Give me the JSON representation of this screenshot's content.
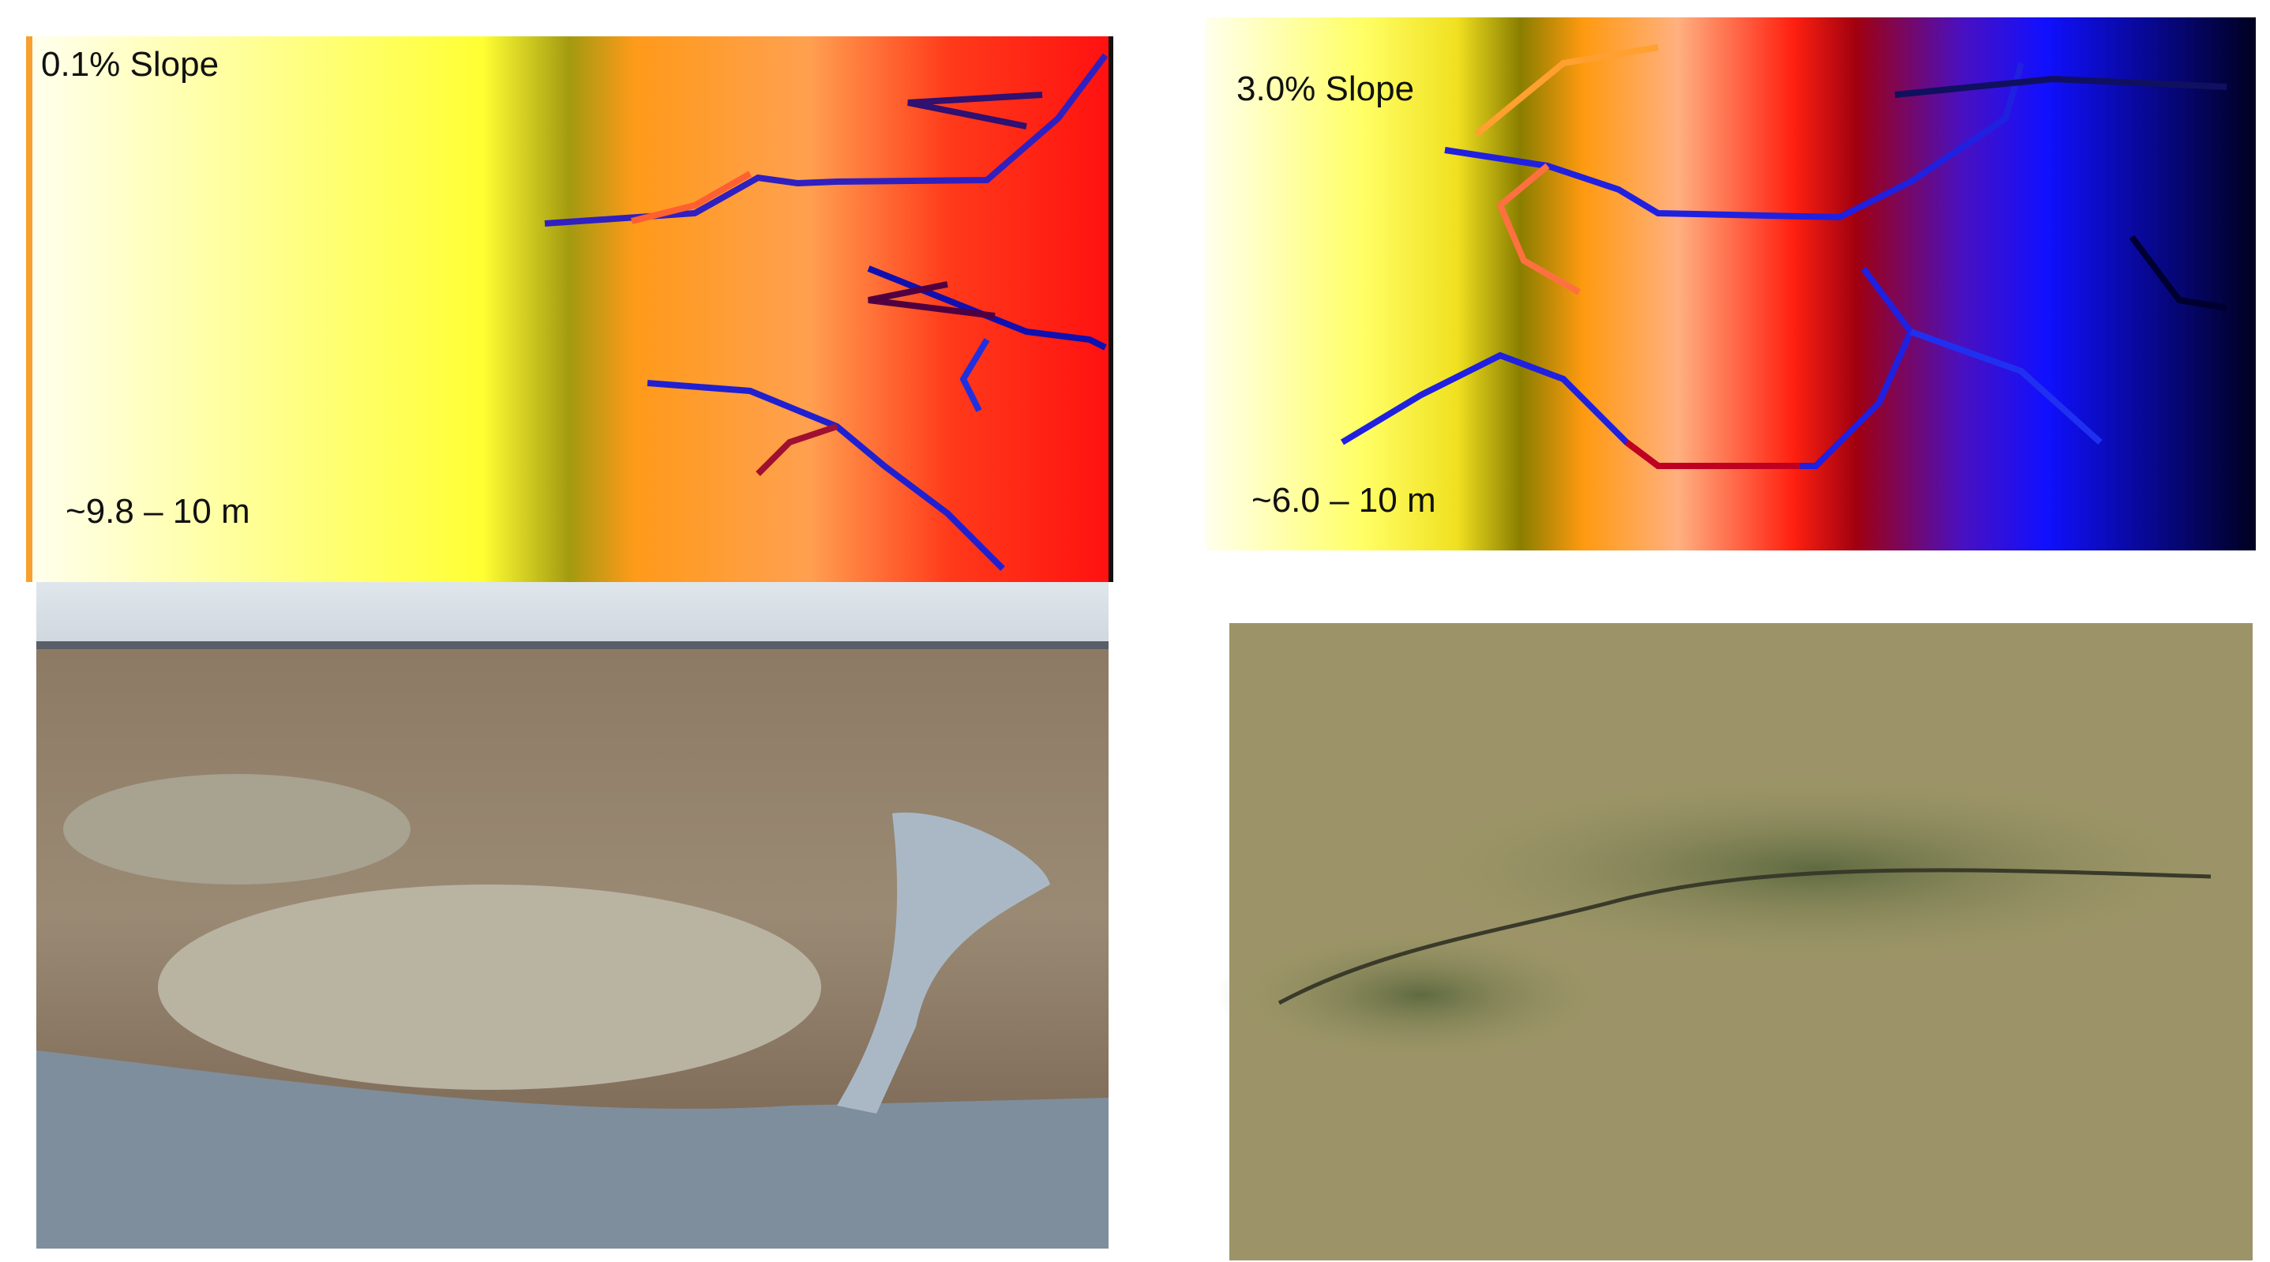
{
  "panels": [
    {
      "label": "0.1% Slope",
      "scale": "~9.8 – 10 m"
    },
    {
      "label": "3.0% Slope",
      "scale": "~6.0 – 10 m"
    }
  ]
}
